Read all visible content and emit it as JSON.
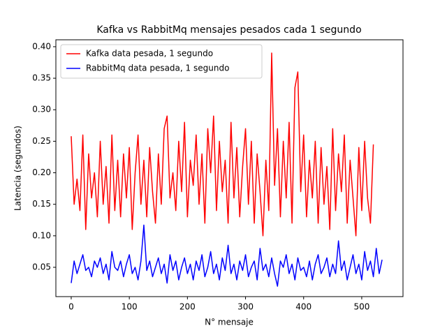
{
  "chart_data": {
    "type": "line",
    "title": "Kafka vs RabbitMq mensajes pesados cada 1 segundo",
    "x_label": "N° mensaje",
    "y_label": "Latencia (segundos)",
    "xlim": [
      -26.4,
      571
    ],
    "ylim": [
      0.0035,
      0.411
    ],
    "xticks": [
      0,
      100,
      200,
      300,
      400,
      500
    ],
    "yticks": [
      0.05,
      {
        "value": 0.1,
        "label": "0.10"
      },
      0.15,
      {
        "value": 0.2,
        "label": "0.20"
      },
      0.25,
      {
        "value": 0.3,
        "label": "0.30"
      },
      0.35,
      {
        "value": 0.4,
        "label": "0.40"
      }
    ],
    "legend": "upper left",
    "grid": false,
    "series": [
      {
        "name": "Kafka data pesada, 1 segundo",
        "color": "#ff0000",
        "x": [
          0,
          5,
          10,
          15,
          20,
          25,
          30,
          35,
          40,
          45,
          50,
          55,
          60,
          65,
          70,
          75,
          80,
          85,
          90,
          95,
          100,
          105,
          110,
          115,
          120,
          125,
          130,
          135,
          140,
          145,
          150,
          155,
          160,
          165,
          170,
          175,
          180,
          185,
          190,
          195,
          200,
          205,
          210,
          215,
          220,
          225,
          230,
          235,
          240,
          245,
          250,
          255,
          260,
          265,
          270,
          275,
          280,
          285,
          290,
          295,
          300,
          305,
          310,
          315,
          320,
          325,
          330,
          335,
          340,
          345,
          350,
          355,
          360,
          365,
          370,
          375,
          380,
          385,
          390,
          395,
          400,
          405,
          410,
          415,
          420,
          425,
          430,
          435,
          440,
          445,
          450,
          455,
          460,
          465,
          470,
          475,
          480,
          485,
          490,
          495,
          500,
          505,
          510,
          515,
          520
        ],
        "values": [
          0.258,
          0.15,
          0.19,
          0.14,
          0.26,
          0.11,
          0.23,
          0.16,
          0.2,
          0.13,
          0.25,
          0.15,
          0.21,
          0.12,
          0.26,
          0.14,
          0.22,
          0.13,
          0.23,
          0.16,
          0.24,
          0.11,
          0.2,
          0.26,
          0.15,
          0.22,
          0.13,
          0.24,
          0.17,
          0.12,
          0.23,
          0.15,
          0.27,
          0.29,
          0.16,
          0.2,
          0.14,
          0.25,
          0.17,
          0.28,
          0.13,
          0.22,
          0.18,
          0.26,
          0.15,
          0.23,
          0.12,
          0.27,
          0.2,
          0.29,
          0.14,
          0.25,
          0.17,
          0.22,
          0.12,
          0.28,
          0.16,
          0.24,
          0.13,
          0.21,
          0.27,
          0.15,
          0.25,
          0.12,
          0.23,
          0.17,
          0.1,
          0.22,
          0.14,
          0.39,
          0.18,
          0.27,
          0.13,
          0.25,
          0.16,
          0.28,
          0.12,
          0.335,
          0.36,
          0.17,
          0.26,
          0.13,
          0.22,
          0.16,
          0.25,
          0.12,
          0.24,
          0.15,
          0.21,
          0.11,
          0.27,
          0.14,
          0.23,
          0.17,
          0.26,
          0.12,
          0.22,
          0.16,
          0.1,
          0.24,
          0.14,
          0.25,
          0.16,
          0.12,
          0.245
        ]
      },
      {
        "name": "RabbitMq data pesada, 1 segundo",
        "color": "#0000ff",
        "x": [
          0,
          5,
          10,
          15,
          20,
          25,
          30,
          35,
          40,
          45,
          50,
          55,
          60,
          65,
          70,
          75,
          80,
          85,
          90,
          95,
          100,
          105,
          110,
          115,
          120,
          125,
          130,
          135,
          140,
          145,
          150,
          155,
          160,
          165,
          170,
          175,
          180,
          185,
          190,
          195,
          200,
          205,
          210,
          215,
          220,
          225,
          230,
          235,
          240,
          245,
          250,
          255,
          260,
          265,
          270,
          275,
          280,
          285,
          290,
          295,
          300,
          305,
          310,
          315,
          320,
          325,
          330,
          335,
          340,
          345,
          350,
          355,
          360,
          365,
          370,
          375,
          380,
          385,
          390,
          395,
          400,
          405,
          410,
          415,
          420,
          425,
          430,
          435,
          440,
          445,
          450,
          455,
          460,
          465,
          470,
          475,
          480,
          485,
          490,
          495,
          500,
          505,
          510,
          515,
          520,
          525,
          530,
          535
        ],
        "values": [
          0.025,
          0.06,
          0.04,
          0.055,
          0.07,
          0.045,
          0.05,
          0.035,
          0.06,
          0.05,
          0.065,
          0.04,
          0.055,
          0.03,
          0.075,
          0.05,
          0.045,
          0.06,
          0.035,
          0.055,
          0.07,
          0.04,
          0.05,
          0.03,
          0.06,
          0.117,
          0.045,
          0.06,
          0.035,
          0.05,
          0.065,
          0.04,
          0.055,
          0.025,
          0.07,
          0.045,
          0.06,
          0.03,
          0.05,
          0.065,
          0.04,
          0.055,
          0.03,
          0.06,
          0.045,
          0.07,
          0.035,
          0.05,
          0.075,
          0.04,
          0.055,
          0.03,
          0.065,
          0.045,
          0.085,
          0.04,
          0.055,
          0.03,
          0.06,
          0.045,
          0.07,
          0.035,
          0.05,
          0.06,
          0.03,
          0.08,
          0.045,
          0.055,
          0.035,
          0.065,
          0.04,
          0.02,
          0.06,
          0.05,
          0.07,
          0.04,
          0.055,
          0.03,
          0.065,
          0.045,
          0.05,
          0.035,
          0.06,
          0.03,
          0.055,
          0.07,
          0.04,
          0.05,
          0.065,
          0.035,
          0.055,
          0.04,
          0.092,
          0.045,
          0.06,
          0.03,
          0.05,
          0.07,
          0.04,
          0.055,
          0.03,
          0.075,
          0.045,
          0.06,
          0.035,
          0.08,
          0.04,
          0.062
        ]
      }
    ]
  }
}
